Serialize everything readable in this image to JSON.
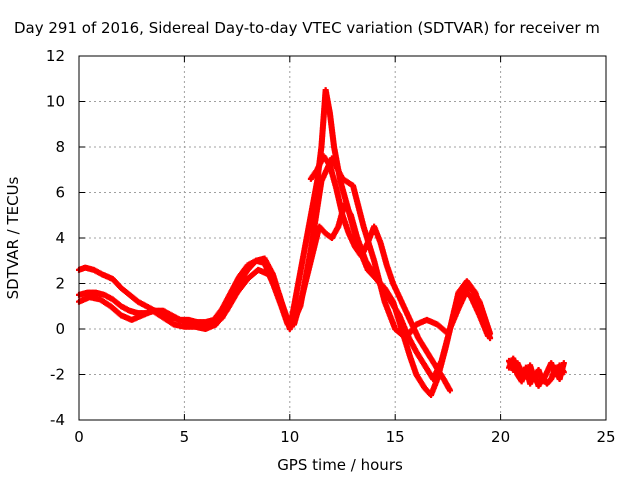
{
  "chart_data": {
    "type": "scatter",
    "title": "Day 291 of 2016, Sidereal Day-to-day VTEC variation (SDTVAR) for receiver m",
    "xlabel": "GPS time / hours",
    "ylabel": "SDTVAR / TECUs",
    "xlim": [
      0,
      25
    ],
    "ylim": [
      -4,
      12
    ],
    "xticks": [
      "0",
      "5",
      "10",
      "15",
      "20",
      "25"
    ],
    "yticks": [
      "-4",
      "-2",
      "0",
      "2",
      "4",
      "6",
      "8",
      "10",
      "12"
    ],
    "grid": true,
    "marker": "+",
    "color": "#ff0000",
    "series": [
      {
        "x": [
          0.0,
          0.3,
          0.7,
          1.1,
          1.6,
          2.0,
          2.4,
          2.8,
          3.2,
          3.6,
          4.0,
          4.4,
          4.8,
          5.2,
          5.6,
          6.0,
          6.4,
          6.8,
          7.2,
          7.6,
          8.0,
          8.4,
          8.8,
          9.2,
          9.6,
          9.9,
          10.1,
          10.4,
          10.7,
          11.0,
          11.3,
          11.5,
          11.7,
          11.9,
          12.1,
          12.4,
          12.7,
          13.0,
          13.3,
          13.7,
          14.1,
          14.5,
          14.9,
          15.3,
          15.7,
          16.0,
          16.4,
          16.7,
          17.0,
          17.4,
          17.8,
          18.2,
          18.6,
          19.0,
          19.4
        ],
        "y": [
          2.6,
          2.7,
          2.6,
          2.4,
          2.2,
          1.8,
          1.5,
          1.2,
          1.0,
          0.8,
          0.7,
          0.5,
          0.4,
          0.4,
          0.3,
          0.3,
          0.4,
          0.9,
          1.6,
          2.3,
          2.8,
          3.0,
          2.9,
          2.0,
          1.0,
          0.2,
          0.5,
          2.0,
          3.5,
          5.0,
          6.5,
          8.0,
          10.5,
          9.5,
          8.0,
          6.5,
          5.5,
          4.5,
          3.5,
          2.6,
          2.2,
          1.8,
          1.2,
          0.0,
          -1.2,
          -2.0,
          -2.6,
          -2.9,
          -2.2,
          -0.8,
          0.8,
          1.8,
          1.4,
          0.6,
          -0.3
        ]
      },
      {
        "x": [
          0.0,
          0.4,
          0.8,
          1.2,
          1.6,
          2.0,
          2.4,
          2.8,
          3.2,
          3.6,
          4.0,
          4.4,
          4.8,
          5.2,
          5.6,
          6.0,
          6.4,
          6.8,
          7.2,
          7.6,
          8.0,
          8.4,
          8.8,
          9.2,
          9.6,
          9.9,
          10.2,
          10.6,
          11.0,
          11.4,
          11.7,
          12.0,
          12.3,
          12.6,
          12.9,
          13.2,
          13.6,
          14.0,
          14.4,
          14.8,
          15.2,
          15.6,
          16.0,
          16.4,
          16.8,
          17.2,
          17.6,
          18.0,
          18.4,
          18.8,
          19.2,
          19.5
        ],
        "y": [
          1.5,
          1.6,
          1.6,
          1.5,
          1.3,
          1.0,
          0.8,
          0.7,
          0.7,
          0.8,
          0.8,
          0.6,
          0.4,
          0.3,
          0.3,
          0.2,
          0.2,
          0.5,
          1.2,
          2.0,
          2.6,
          3.0,
          3.1,
          2.4,
          1.2,
          0.4,
          0.2,
          1.5,
          3.0,
          4.5,
          4.2,
          4.0,
          4.5,
          5.5,
          5.0,
          4.0,
          3.0,
          2.4,
          1.8,
          1.2,
          0.6,
          -0.3,
          -1.0,
          -1.6,
          -2.2,
          -1.4,
          0.0,
          1.6,
          2.1,
          1.6,
          0.4,
          -0.4
        ]
      },
      {
        "x": [
          0.0,
          0.5,
          1.0,
          1.5,
          2.0,
          2.5,
          3.0,
          3.5,
          4.0,
          4.5,
          5.0,
          5.5,
          6.0,
          6.5,
          7.0,
          7.5,
          8.0,
          8.5,
          9.0,
          9.5,
          10.0,
          10.5,
          11.0,
          11.5,
          12.0,
          12.5,
          13.0,
          13.5,
          14.0,
          14.5,
          15.0,
          15.5,
          16.0,
          16.5,
          17.0,
          17.5,
          18.0,
          18.5,
          19.0,
          19.5
        ],
        "y": [
          1.2,
          1.4,
          1.3,
          1.0,
          0.6,
          0.4,
          0.6,
          0.8,
          0.5,
          0.2,
          0.1,
          0.1,
          0.0,
          0.2,
          0.8,
          1.6,
          2.2,
          2.6,
          2.4,
          1.5,
          0.0,
          1.0,
          3.5,
          6.5,
          7.5,
          6.6,
          6.3,
          4.5,
          3.0,
          1.2,
          0.0,
          -0.4,
          0.2,
          0.4,
          0.2,
          -0.2,
          0.9,
          1.9,
          1.2,
          -0.2
        ]
      },
      {
        "x": [
          11.0,
          11.3,
          11.6,
          11.9,
          12.2,
          12.5,
          12.8,
          13.1,
          13.4,
          13.7,
          14.0,
          14.3,
          14.6,
          14.9,
          15.2,
          15.5,
          15.8,
          16.1,
          16.5,
          16.9,
          17.3,
          17.6
        ],
        "y": [
          6.6,
          7.0,
          7.6,
          7.2,
          6.2,
          5.0,
          4.2,
          3.6,
          3.2,
          3.8,
          4.5,
          3.8,
          2.8,
          2.0,
          1.4,
          0.8,
          0.2,
          -0.4,
          -1.0,
          -1.6,
          -2.2,
          -2.7
        ]
      },
      {
        "x": [
          20.4,
          20.6,
          20.8,
          21.0,
          21.2,
          21.4,
          21.6,
          21.8,
          22.0,
          22.2,
          22.4,
          22.6,
          22.8,
          23.0
        ],
        "y": [
          -1.4,
          -1.8,
          -1.5,
          -1.9,
          -2.1,
          -1.6,
          -2.2,
          -1.8,
          -2.3,
          -1.9,
          -1.5,
          -2.0,
          -1.6,
          -1.9
        ]
      },
      {
        "x": [
          20.4,
          20.6,
          20.8,
          21.0,
          21.2,
          21.4,
          21.6,
          21.8,
          22.0,
          22.2,
          22.4,
          22.6,
          22.8,
          23.0
        ],
        "y": [
          -1.7,
          -1.3,
          -2.0,
          -2.3,
          -1.7,
          -2.4,
          -2.0,
          -2.5,
          -2.1,
          -2.4,
          -2.2,
          -1.7,
          -2.2,
          -1.5
        ]
      }
    ]
  }
}
